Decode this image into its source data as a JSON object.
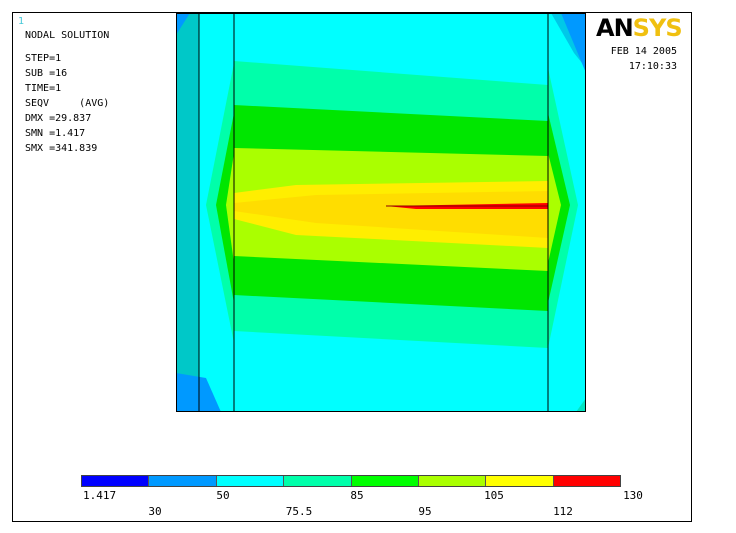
{
  "window_number": "1",
  "logo": {
    "part1": "AN",
    "part2": "SYS"
  },
  "info": {
    "title": "NODAL SOLUTION",
    "lines": [
      "STEP=1",
      "SUB =16",
      "TIME=1",
      "SEQV     (AVG)",
      "DMX =29.837",
      "SMN =1.417",
      "SMX =341.839"
    ]
  },
  "date": {
    "date": "FEB 14 2005",
    "time": "17:10:33"
  },
  "legend": {
    "colors": [
      "#0000ff",
      "#0099ff",
      "#00ffff",
      "#00ffaa",
      "#00ff00",
      "#aaff00",
      "#ffff00",
      "#ff0000"
    ],
    "top_labels": [
      "1.417",
      "50",
      "85",
      "105",
      "130"
    ],
    "bottom_labels": [
      "30",
      "75.5",
      "95",
      "112"
    ]
  },
  "contour_colors": {
    "cyan": "#00ffff",
    "teal": "#00e5c2",
    "aqua_green": "#00ffaa",
    "green": "#00e600",
    "yellow_green": "#aaff00",
    "yellow": "#ffff00",
    "orange_yellow": "#ffdd00",
    "red": "#ff0000",
    "blue_light": "#0099ff"
  }
}
